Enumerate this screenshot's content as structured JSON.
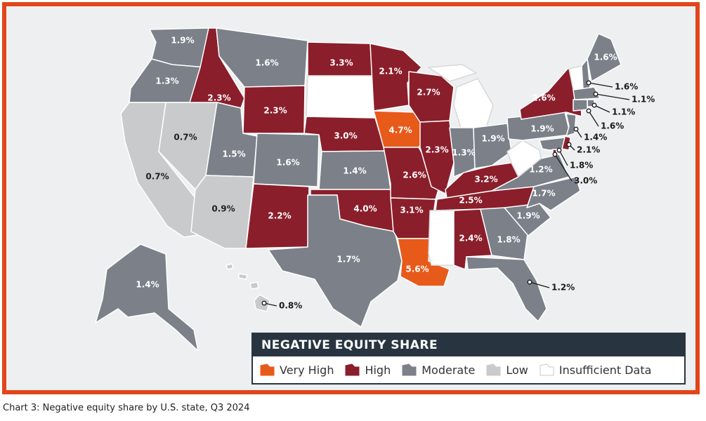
{
  "map": {
    "legend_title": "NEGATIVE EQUITY SHARE",
    "categories": [
      {
        "key": "very_high",
        "label": "Very High",
        "color": "#e85a1a"
      },
      {
        "key": "high",
        "label": "High",
        "color": "#8b1e2b"
      },
      {
        "key": "moderate",
        "label": "Moderate",
        "color": "#7b8089"
      },
      {
        "key": "low",
        "label": "Low",
        "color": "#c9cacc"
      },
      {
        "key": "insufficient",
        "label": "Insufficient Data",
        "color": "#ffffff"
      }
    ],
    "states": {
      "WA": {
        "value": "1.9%",
        "cat": "moderate"
      },
      "OR": {
        "value": "1.3%",
        "cat": "moderate"
      },
      "CA": {
        "value": "0.7%",
        "cat": "low"
      },
      "NV": {
        "value": "0.7%",
        "cat": "low"
      },
      "ID": {
        "value": "2.3%",
        "cat": "high"
      },
      "MT": {
        "value": "1.6%",
        "cat": "moderate"
      },
      "WY": {
        "value": "2.3%",
        "cat": "high"
      },
      "UT": {
        "value": "1.5%",
        "cat": "moderate"
      },
      "AZ": {
        "value": "0.9%",
        "cat": "low"
      },
      "CO": {
        "value": "1.6%",
        "cat": "moderate"
      },
      "NM": {
        "value": "2.2%",
        "cat": "high"
      },
      "ND": {
        "value": "3.3%",
        "cat": "high"
      },
      "SD": {
        "value": "",
        "cat": "insufficient"
      },
      "NE": {
        "value": "3.0%",
        "cat": "high"
      },
      "KS": {
        "value": "1.4%",
        "cat": "moderate"
      },
      "OK": {
        "value": "4.0%",
        "cat": "high"
      },
      "TX": {
        "value": "1.7%",
        "cat": "moderate"
      },
      "MN": {
        "value": "2.1%",
        "cat": "high"
      },
      "IA": {
        "value": "4.7%",
        "cat": "very_high"
      },
      "MO": {
        "value": "2.6%",
        "cat": "high"
      },
      "AR": {
        "value": "3.1%",
        "cat": "high"
      },
      "LA": {
        "value": "5.6%",
        "cat": "very_high"
      },
      "WI": {
        "value": "2.7%",
        "cat": "high"
      },
      "IL": {
        "value": "2.3%",
        "cat": "high"
      },
      "MI": {
        "value": "",
        "cat": "insufficient"
      },
      "IN": {
        "value": "1.3%",
        "cat": "moderate"
      },
      "OH": {
        "value": "1.9%",
        "cat": "moderate"
      },
      "KY": {
        "value": "3.2%",
        "cat": "high"
      },
      "TN": {
        "value": "2.5%",
        "cat": "high"
      },
      "MS": {
        "value": "",
        "cat": "insufficient"
      },
      "AL": {
        "value": "2.4%",
        "cat": "high"
      },
      "GA": {
        "value": "1.8%",
        "cat": "moderate"
      },
      "FL": {
        "value": "1.2%",
        "cat": "moderate"
      },
      "SC": {
        "value": "1.9%",
        "cat": "moderate"
      },
      "NC": {
        "value": "1.7%",
        "cat": "moderate"
      },
      "VA": {
        "value": "1.2%",
        "cat": "moderate"
      },
      "WV": {
        "value": "",
        "cat": "insufficient"
      },
      "PA": {
        "value": "1.9%",
        "cat": "moderate"
      },
      "NY": {
        "value": "2.6%",
        "cat": "high"
      },
      "VT": {
        "value": "",
        "cat": "insufficient"
      },
      "ME": {
        "value": "1.6%",
        "cat": "moderate"
      },
      "NH": {
        "value": "1.6%",
        "cat": "moderate"
      },
      "MA": {
        "value": "1.1%",
        "cat": "moderate"
      },
      "RI": {
        "value": "1.1%",
        "cat": "moderate"
      },
      "CT": {
        "value": "1.6%",
        "cat": "moderate"
      },
      "NJ": {
        "value": "1.4%",
        "cat": "moderate"
      },
      "DE": {
        "value": "2.1%",
        "cat": "high"
      },
      "MD": {
        "value": "1.8%",
        "cat": "moderate"
      },
      "DC": {
        "value": "3.0%",
        "cat": "high"
      },
      "AK": {
        "value": "1.4%",
        "cat": "moderate"
      },
      "HI": {
        "value": "0.8%",
        "cat": "low"
      }
    }
  },
  "caption": "Chart 3: Negative equity share by U.S. state, Q3 2024"
}
